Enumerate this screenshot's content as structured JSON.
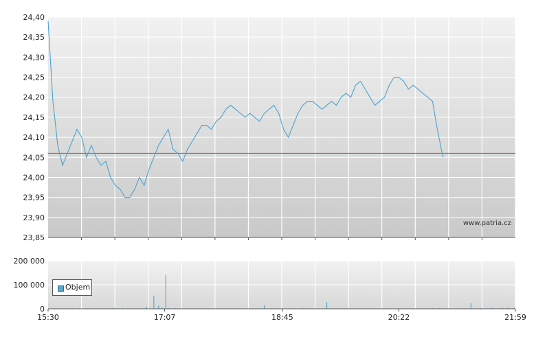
{
  "chart_data": [
    {
      "type": "line",
      "series": [
        {
          "color": "#4aa3cf",
          "points": [
            [
              0,
              24.39
            ],
            [
              4,
              24.19
            ],
            [
              8,
              24.08
            ],
            [
              12,
              24.03
            ],
            [
              16,
              24.06
            ],
            [
              20,
              24.09
            ],
            [
              24,
              24.12
            ],
            [
              28,
              24.1
            ],
            [
              32,
              24.05
            ],
            [
              36,
              24.08
            ],
            [
              40,
              24.05
            ],
            [
              44,
              24.03
            ],
            [
              48,
              24.04
            ],
            [
              52,
              24.0
            ],
            [
              56,
              23.98
            ],
            [
              60,
              23.97
            ],
            [
              64,
              23.95
            ],
            [
              68,
              23.95
            ],
            [
              72,
              23.97
            ],
            [
              76,
              24.0
            ],
            [
              80,
              23.98
            ],
            [
              84,
              24.02
            ],
            [
              88,
              24.05
            ],
            [
              92,
              24.08
            ],
            [
              96,
              24.1
            ],
            [
              100,
              24.12
            ],
            [
              104,
              24.07
            ],
            [
              108,
              24.06
            ],
            [
              112,
              24.04
            ],
            [
              116,
              24.07
            ],
            [
              120,
              24.09
            ],
            [
              124,
              24.11
            ],
            [
              128,
              24.13
            ],
            [
              132,
              24.13
            ],
            [
              136,
              24.12
            ],
            [
              140,
              24.14
            ],
            [
              144,
              24.15
            ],
            [
              148,
              24.17
            ],
            [
              152,
              24.18
            ],
            [
              156,
              24.17
            ],
            [
              160,
              24.16
            ],
            [
              164,
              24.15
            ],
            [
              168,
              24.16
            ],
            [
              172,
              24.15
            ],
            [
              176,
              24.14
            ],
            [
              180,
              24.16
            ],
            [
              184,
              24.17
            ],
            [
              188,
              24.18
            ],
            [
              192,
              24.16
            ],
            [
              196,
              24.12
            ],
            [
              200,
              24.1
            ],
            [
              204,
              24.13
            ],
            [
              208,
              24.16
            ],
            [
              212,
              24.18
            ],
            [
              216,
              24.19
            ],
            [
              220,
              24.19
            ],
            [
              224,
              24.18
            ],
            [
              228,
              24.17
            ],
            [
              232,
              24.18
            ],
            [
              236,
              24.19
            ],
            [
              240,
              24.18
            ],
            [
              244,
              24.2
            ],
            [
              248,
              24.21
            ],
            [
              252,
              24.2
            ],
            [
              256,
              24.23
            ],
            [
              260,
              24.24
            ],
            [
              264,
              24.22
            ],
            [
              268,
              24.2
            ],
            [
              272,
              24.18
            ],
            [
              276,
              24.19
            ],
            [
              280,
              24.2
            ],
            [
              284,
              24.23
            ],
            [
              288,
              24.25
            ],
            [
              292,
              24.25
            ],
            [
              296,
              24.24
            ],
            [
              300,
              24.22
            ],
            [
              304,
              24.23
            ],
            [
              308,
              24.22
            ],
            [
              312,
              24.21
            ],
            [
              316,
              24.2
            ],
            [
              320,
              24.19
            ],
            [
              324,
              24.12
            ],
            [
              328,
              24.06
            ],
            [
              329,
              24.05
            ]
          ]
        }
      ],
      "reference_line": {
        "value": 24.06,
        "color": "#d94040"
      },
      "ylim": [
        23.85,
        24.4
      ],
      "y_ticks": [
        "24,40",
        "24,35",
        "24,30",
        "24,25",
        "24,20",
        "24,15",
        "24,10",
        "24,05",
        "24,00",
        "23,95",
        "23,90",
        "23,85"
      ],
      "y_tick_values": [
        24.4,
        24.35,
        24.3,
        24.25,
        24.2,
        24.15,
        24.1,
        24.05,
        24.0,
        23.95,
        23.9,
        23.85
      ],
      "xlim": [
        0,
        389
      ],
      "grid": true,
      "background_gradient": [
        "#f2f2f2",
        "#c9c9c9"
      ],
      "watermark": "www.patria.cz"
    },
    {
      "type": "bar",
      "series": [
        {
          "name": "Objem",
          "color": "#5aa9cc",
          "points": [
            [
              5,
              2500
            ],
            [
              12,
              1500
            ],
            [
              20,
              3000
            ],
            [
              33,
              2000
            ],
            [
              45,
              1500
            ],
            [
              55,
              4500
            ],
            [
              62,
              3000
            ],
            [
              70,
              1800
            ],
            [
              76,
              2500
            ],
            [
              82,
              8000
            ],
            [
              88,
              55000
            ],
            [
              92,
              14000
            ],
            [
              95,
              5000
            ],
            [
              98,
              140000
            ],
            [
              100,
              4000
            ],
            [
              106,
              2500
            ],
            [
              115,
              2000
            ],
            [
              125,
              2200
            ],
            [
              135,
              1500
            ],
            [
              145,
              2500
            ],
            [
              155,
              1800
            ],
            [
              168,
              1500
            ],
            [
              178,
              1400
            ],
            [
              180,
              15000
            ],
            [
              186,
              2500
            ],
            [
              195,
              1800
            ],
            [
              205,
              2000
            ],
            [
              212,
              2500
            ],
            [
              220,
              1500
            ],
            [
              232,
              28000
            ],
            [
              238,
              2000
            ],
            [
              248,
              2500
            ],
            [
              258,
              1800
            ],
            [
              265,
              2500
            ],
            [
              270,
              1500
            ],
            [
              275,
              1500
            ],
            [
              285,
              2000
            ],
            [
              298,
              1800
            ],
            [
              310,
              2000
            ],
            [
              320,
              2500
            ],
            [
              326,
              3000
            ],
            [
              334,
              1500
            ],
            [
              345,
              2000
            ],
            [
              352,
              24000
            ],
            [
              360,
              3000
            ],
            [
              370,
              4000
            ],
            [
              378,
              5000
            ],
            [
              383,
              6000
            ],
            [
              388,
              4000
            ]
          ]
        }
      ],
      "ylim": [
        0,
        200000
      ],
      "y_ticks": [
        "200 000",
        "100 000",
        "0"
      ],
      "y_tick_values": [
        200000,
        100000,
        0
      ],
      "x_ticks": [
        "15:30",
        "17:07",
        "18:45",
        "20:22",
        "21:59"
      ],
      "x_tick_values": [
        0,
        97,
        195,
        292,
        389
      ],
      "xlim": [
        0,
        389
      ],
      "legend": "Objem",
      "legend_position": "left",
      "grid": true,
      "background_gradient": [
        "#f2f2f2",
        "#d8d8d8"
      ]
    }
  ]
}
